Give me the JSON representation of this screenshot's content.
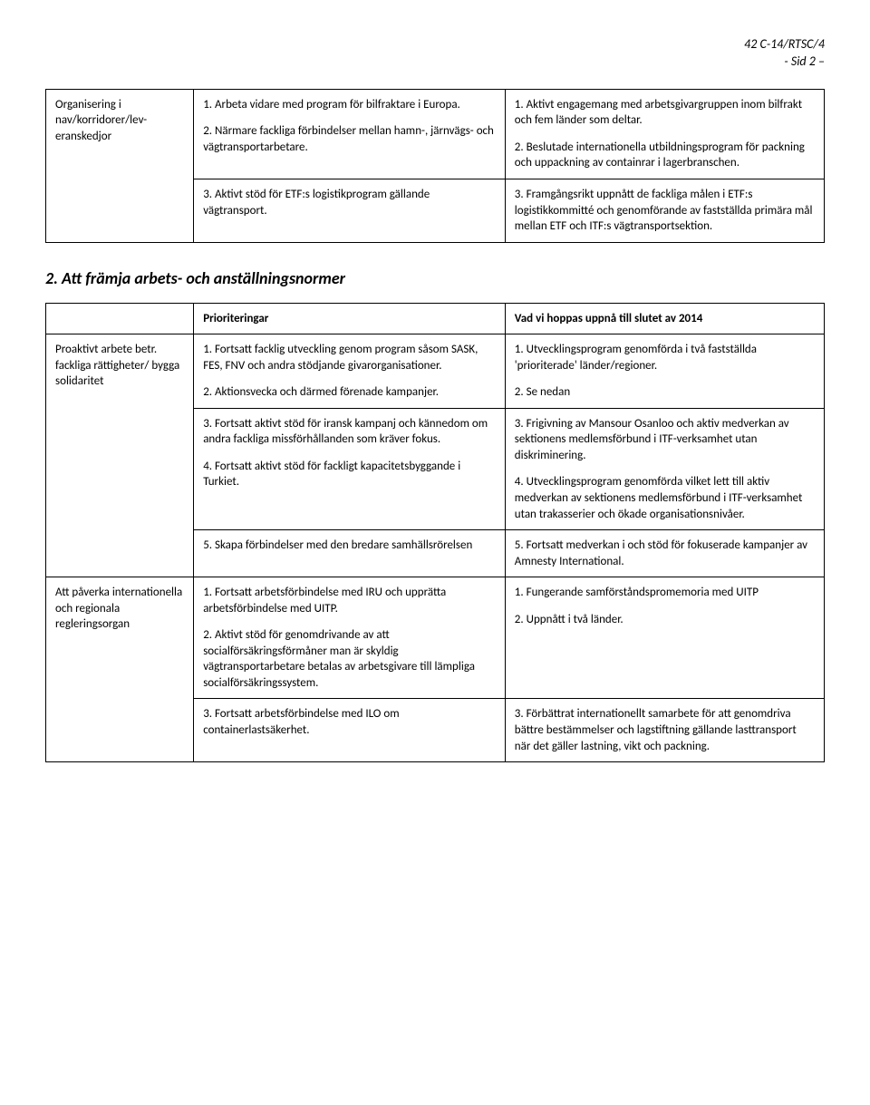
{
  "header": {
    "doc_ref": "42 C-14/RTSC/4",
    "page_ref": "- Sid 2 –"
  },
  "table1": {
    "row_label": "Organisering i nav/korridorer/lev-eranskedjor",
    "mid": [
      "1. Arbeta vidare med program för bilfraktare i Europa.",
      "2. Närmare fackliga förbindelser mellan hamn-, järnvägs- och vägtransportarbetare.",
      "3. Aktivt stöd för ETF:s logistikprogram gällande vägtransport."
    ],
    "right": [
      "1. Aktivt engagemang med arbetsgivargruppen inom bilfrakt och fem länder som deltar.",
      "2. Beslutade internationella utbildningsprogram för packning och uppackning av containrar i lagerbranschen.",
      "3. Framgångsrikt uppnått de fackliga målen i ETF:s logistikkommitté och genomförande av fastställda primära mål mellan ETF och ITF:s vägtransportsektion."
    ]
  },
  "section2_heading": "2. Att främja arbets- och anställningsnormer",
  "table2": {
    "head_mid": "Prioriteringar",
    "head_right": "Vad vi hoppas uppnå till slutet av 2014",
    "rows": [
      {
        "label": "Proaktivt arbete betr. fackliga rättigheter/ bygga solidaritet",
        "mid": [
          "1. Fortsatt facklig utveckling genom program såsom SASK, FES, FNV och andra stödjande givarorganisationer.",
          "2. Aktionsvecka och därmed förenade kampanjer.",
          "3. Fortsatt aktivt stöd för iransk kampanj och kännedom om andra fackliga missförhållanden som kräver fokus.",
          "4. Fortsatt aktivt stöd för fackligt kapacitetsbyggande i Turkiet.",
          "5. Skapa förbindelser med den bredare samhällsrörelsen"
        ],
        "right": [
          "1. Utvecklingsprogram genomförda i två fastställda 'prioriterade' länder/regioner.",
          "2. Se nedan",
          "3. Frigivning av Mansour Osanloo och aktiv medverkan av sektionens medlemsförbund i ITF-verksamhet utan diskriminering.",
          "4. Utvecklingsprogram genomförda vilket lett till aktiv medverkan av sektionens medlemsförbund i ITF-verksamhet utan trakasserier och ökade organisationsnivåer.",
          "5. Fortsatt medverkan i och stöd för fokuserade kampanjer av Amnesty International."
        ]
      },
      {
        "label": "Att påverka internationella och regionala regleringsorgan",
        "mid": [
          "1. Fortsatt arbetsförbindelse med IRU och upprätta arbetsförbindelse med UITP.",
          "2. Aktivt stöd för genomdrivande av att socialförsäkringsförmåner man är skyldig vägtransportarbetare betalas av arbetsgivare till lämpliga socialförsäkringssystem.",
          "3. Fortsatt arbetsförbindelse med ILO om containerlastsäkerhet."
        ],
        "right": [
          "1. Fungerande samförståndspromemoria med UITP",
          "2. Uppnått i två länder.",
          "3. Förbättrat internationellt samarbete för att genomdriva bättre bestämmelser och lagstiftning gällande lasttransport när det gäller lastning, vikt och packning."
        ]
      }
    ]
  }
}
